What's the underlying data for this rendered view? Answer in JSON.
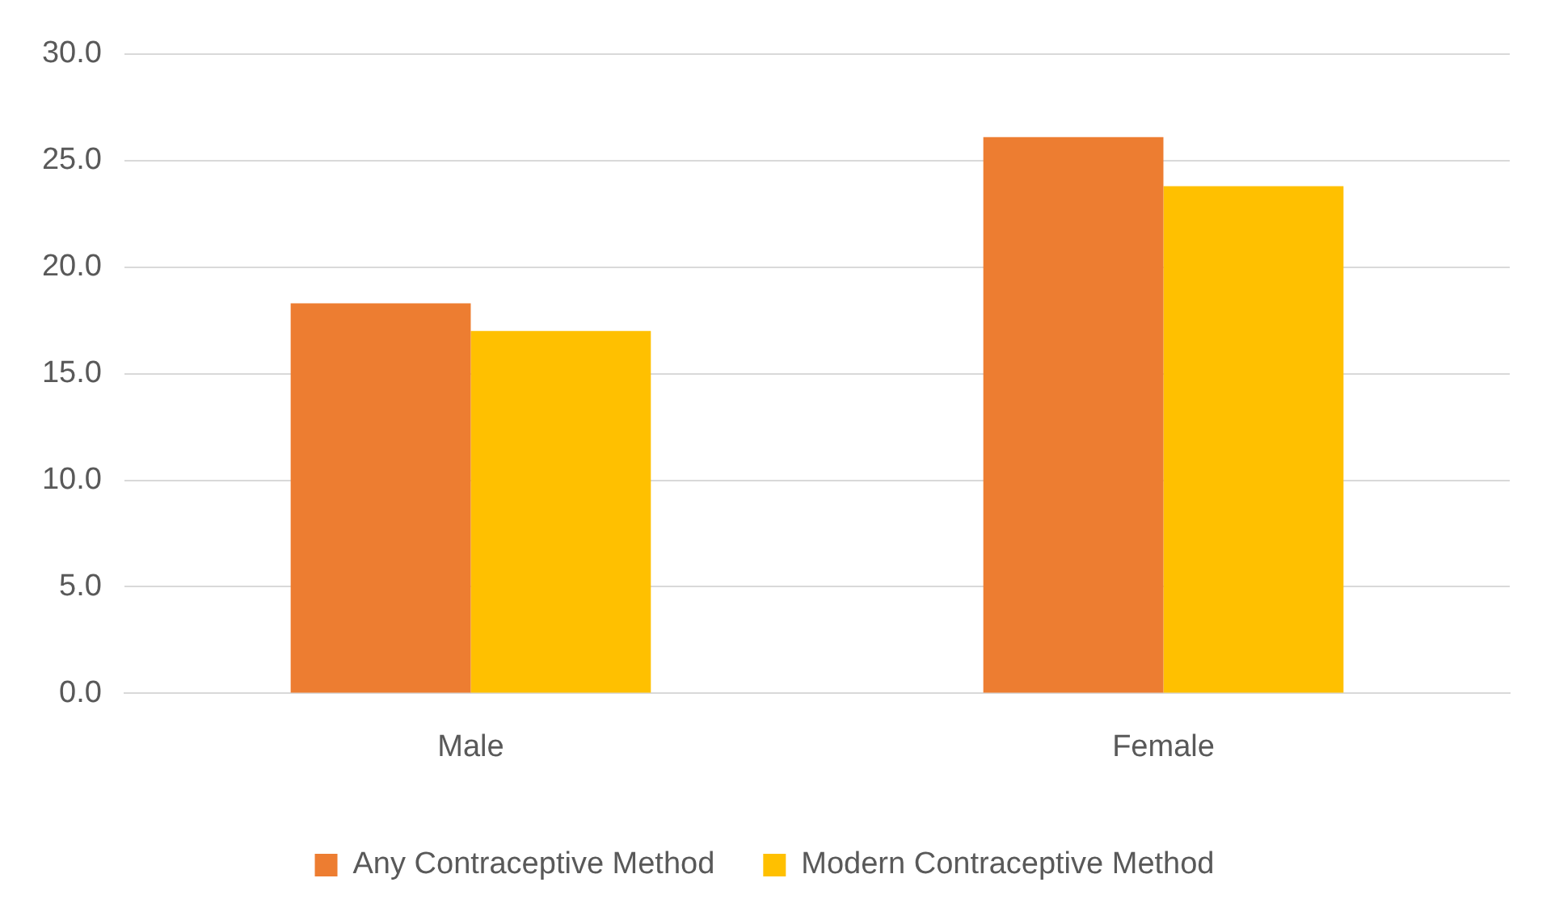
{
  "chart_data": {
    "type": "bar",
    "categories": [
      "Male",
      "Female"
    ],
    "series": [
      {
        "name": "Any Contraceptive Method",
        "color": "#ed7d31",
        "values": [
          18.3,
          26.1
        ]
      },
      {
        "name": "Modern Contraceptive Method",
        "color": "#ffc000",
        "values": [
          17.0,
          23.8
        ]
      }
    ],
    "ylim": [
      0,
      30
    ],
    "yticks": [
      {
        "value": 0,
        "label": "0.0"
      },
      {
        "value": 5,
        "label": "5.0"
      },
      {
        "value": 10,
        "label": "10.0"
      },
      {
        "value": 15,
        "label": "15.0"
      },
      {
        "value": 20,
        "label": "20.0"
      },
      {
        "value": 25,
        "label": "25.0"
      },
      {
        "value": 30,
        "label": "30.0"
      }
    ],
    "grid": "y",
    "legend": "bottom"
  }
}
